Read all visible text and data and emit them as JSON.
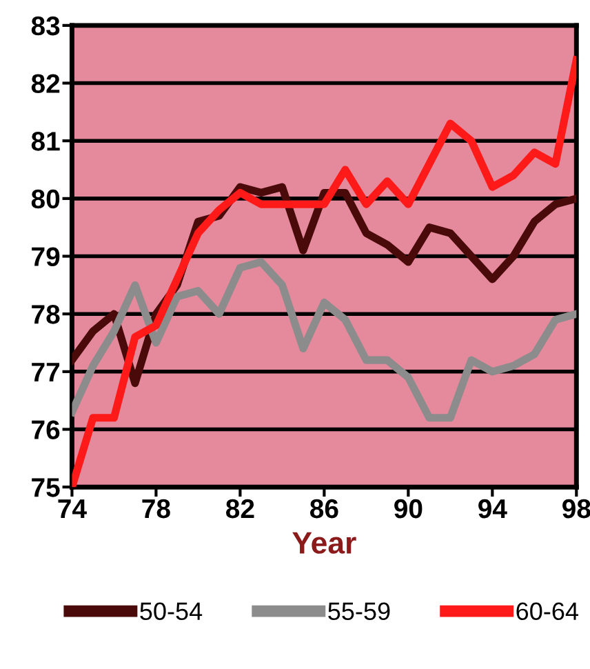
{
  "chart_data": {
    "type": "line",
    "xlabel": "Year",
    "x": [
      74,
      75,
      76,
      77,
      78,
      79,
      80,
      81,
      82,
      83,
      84,
      85,
      86,
      87,
      88,
      89,
      90,
      91,
      92,
      93,
      94,
      95,
      96,
      97,
      98
    ],
    "series": [
      {
        "name": "50-54",
        "color": "#4a0a0a",
        "values": [
          77.2,
          77.7,
          78.0,
          76.8,
          78.0,
          78.5,
          79.6,
          79.7,
          80.2,
          80.1,
          80.2,
          79.1,
          80.1,
          80.1,
          79.4,
          79.2,
          78.9,
          79.5,
          79.4,
          79.0,
          78.6,
          79.0,
          79.6,
          79.9,
          80.0
        ]
      },
      {
        "name": "55-59",
        "color": "#8c8c8c",
        "values": [
          76.3,
          77.1,
          77.7,
          78.5,
          77.5,
          78.3,
          78.4,
          78.0,
          78.8,
          78.9,
          78.5,
          77.4,
          78.2,
          77.9,
          77.2,
          77.2,
          76.9,
          76.2,
          76.2,
          77.2,
          77.0,
          77.1,
          77.3,
          77.9,
          78.0
        ]
      },
      {
        "name": "60-64",
        "color": "#ff1a1a",
        "values": [
          75.0,
          76.2,
          76.2,
          77.6,
          77.8,
          78.6,
          79.4,
          79.8,
          80.1,
          79.9,
          79.9,
          79.9,
          79.9,
          80.5,
          79.9,
          80.3,
          79.9,
          80.6,
          81.3,
          81.0,
          80.2,
          80.4,
          80.8,
          80.6,
          82.4
        ]
      }
    ],
    "xlim": [
      74,
      98
    ],
    "xticks": [
      74,
      78,
      82,
      86,
      90,
      94,
      98
    ],
    "ylim": [
      75,
      83
    ],
    "yticks": [
      75,
      76,
      77,
      78,
      79,
      80,
      81,
      82,
      83
    ],
    "grid": "y",
    "legend": "bottom",
    "marker": "none",
    "line_style": "solid"
  }
}
